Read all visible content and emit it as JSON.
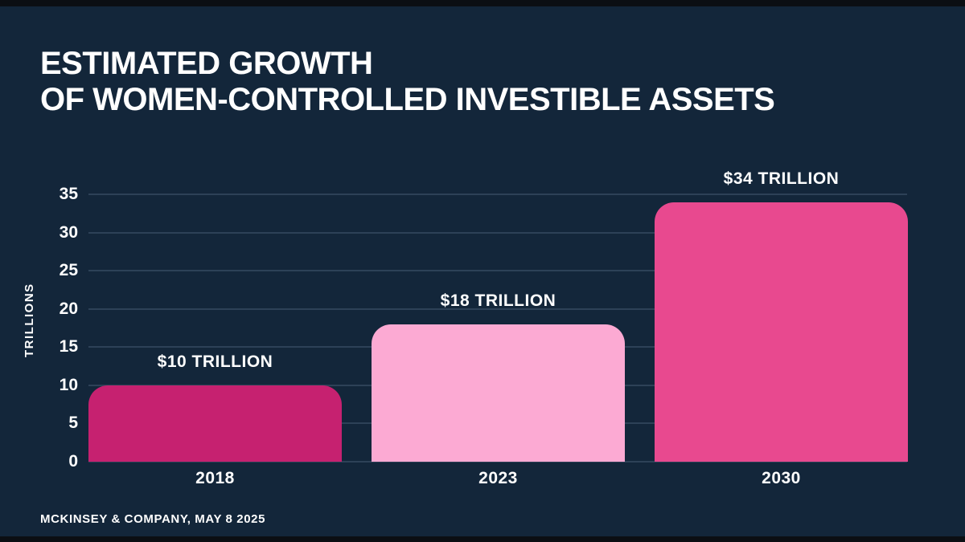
{
  "slide": {
    "title_line1": "ESTIMATED GROWTH",
    "title_line2": "OF WOMEN-CONTROLLED INVESTIBLE ASSETS",
    "footer": "MCKINSEY & COMPANY, MAY 8 2025"
  },
  "chart_data": {
    "type": "bar",
    "title": "Estimated growth of women-controlled investible assets",
    "categories": [
      "2018",
      "2023",
      "2030"
    ],
    "values": [
      10,
      18,
      34
    ],
    "bar_labels": [
      "$10 TRILLION",
      "$18 TRILLION",
      "$34 TRILLION"
    ],
    "bar_colors": [
      "#c62170",
      "#fcaad3",
      "#e8498f"
    ],
    "xlabel": "",
    "ylabel": "TRILLIONS",
    "ylim": [
      0,
      35
    ],
    "yticks": [
      0,
      5,
      10,
      15,
      20,
      25,
      30,
      35
    ],
    "grid": true,
    "legend": false,
    "background_color": "#13263a",
    "gridline_color": "#2d4157",
    "text_color": "#ffffff"
  }
}
